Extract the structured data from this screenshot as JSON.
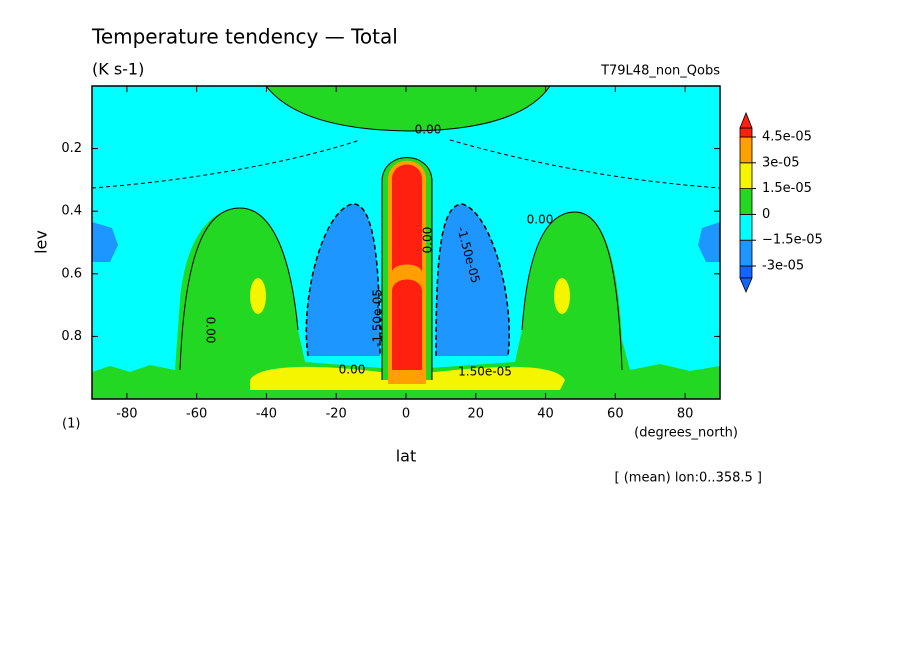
{
  "chart_data": {
    "type": "contour",
    "title": "Temperature tendency — Total",
    "subtitle": "(K s-1)",
    "run_label": "T79L48_non_Qobs",
    "x_label": "lat",
    "y_label": "lev",
    "x_unit": "(degrees_north)",
    "y_unit": "(1)",
    "footnote": "[ (mean) lon:0..358.5 ]",
    "xlim": [
      -90,
      90
    ],
    "xticks": [
      -80,
      -60,
      -40,
      -20,
      0,
      20,
      40,
      60,
      80
    ],
    "ylim": [
      0,
      1
    ],
    "y_inverted": true,
    "yticks": [
      0.2,
      0.4,
      0.6,
      0.8
    ],
    "levels": [
      {
        "value": -3e-05,
        "label": "-3e-05"
      },
      {
        "value": -1.5e-05,
        "label": "−1.5e-05"
      },
      0,
      {
        "value": 1.5e-05,
        "label": "1.5e-05"
      },
      {
        "value": 3e-05,
        "label": "3e-05"
      },
      {
        "value": 4.5e-05,
        "label": "4.5e-05"
      }
    ],
    "colors": [
      "#1464ff",
      "#1e96ff",
      "#00ffff",
      "#22d822",
      "#f5f500",
      "#ffa000",
      "#ff2010"
    ],
    "contour_labels": [
      "0.00",
      "0.00",
      "0.00",
      "0.00",
      "-1.50e-05",
      "-1.50e-05",
      "1.50e-05",
      "0.00"
    ]
  }
}
